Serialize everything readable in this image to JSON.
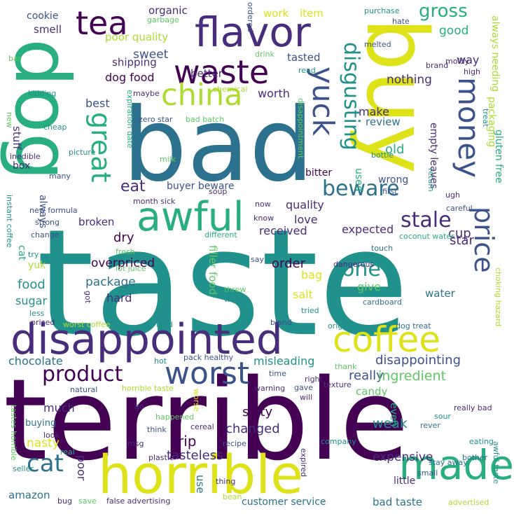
{
  "palette": {
    "purple": "#440154",
    "indigo": "#472d7b",
    "blue": "#3b528b",
    "steel": "#2c728e",
    "teal": "#21918c",
    "green": "#28ae80",
    "lime": "#5ec962",
    "yellowgreen": "#addc30",
    "yellow": "#dde318"
  },
  "words": [
    {
      "id": "taste",
      "text": "taste",
      "c": "teal",
      "rot": 0
    },
    {
      "id": "terrible",
      "text": "terrible",
      "c": "purple",
      "rot": 0
    },
    {
      "id": "bad",
      "text": "bad",
      "c": "steel",
      "rot": 0
    },
    {
      "id": "buy",
      "text": "buy",
      "c": "yellow",
      "rot": 90
    },
    {
      "id": "dog",
      "text": "dog",
      "c": "green",
      "rot": 90
    },
    {
      "id": "disappointed",
      "text": "disappointed",
      "c": "indigo",
      "rot": 0
    },
    {
      "id": "horrible",
      "text": "horrible",
      "c": "yellow",
      "rot": 0
    },
    {
      "id": "flavor",
      "text": "flavor",
      "c": "indigo",
      "rot": 0
    },
    {
      "id": "awful",
      "text": "awful",
      "c": "green",
      "rot": 0
    },
    {
      "id": "made",
      "text": "made",
      "c": "green",
      "rot": 0
    },
    {
      "id": "coffee",
      "text": "coffee",
      "c": "yellow",
      "rot": 0
    },
    {
      "id": "waste",
      "text": "waste",
      "c": "purple",
      "rot": 0
    },
    {
      "id": "worst",
      "text": "worst",
      "c": "blue",
      "rot": 0
    },
    {
      "id": "tea",
      "text": "tea",
      "c": "purple",
      "rot": 0
    },
    {
      "id": "china",
      "text": "china",
      "c": "yellowgreen",
      "rot": 0
    },
    {
      "id": "yuck",
      "text": "yuck",
      "c": "blue",
      "rot": 90
    },
    {
      "id": "money",
      "text": "money",
      "c": "blue",
      "rot": 90
    },
    {
      "id": "price",
      "text": "price",
      "c": "blue",
      "rot": 90
    },
    {
      "id": "great",
      "text": "great",
      "c": "green",
      "rot": 90
    },
    {
      "id": "product",
      "text": "product",
      "c": "purple",
      "rot": 0
    },
    {
      "id": "disgusting",
      "text": "disgusting",
      "c": "teal",
      "rot": 90
    },
    {
      "id": "beware",
      "text": "beware",
      "c": "steel",
      "rot": 0
    },
    {
      "id": "stale",
      "text": "stale",
      "c": "indigo",
      "rot": 0
    },
    {
      "id": "cat",
      "text": "cat",
      "c": "steel",
      "rot": 0
    },
    {
      "id": "one",
      "text": "one",
      "c": "teal",
      "rot": 0
    },
    {
      "id": "gross",
      "text": "gross",
      "c": "green",
      "rot": 0
    },
    {
      "id": "eat",
      "text": "eat",
      "c": "indigo",
      "rot": 0
    },
    {
      "id": "disappointing",
      "text": "disappointing",
      "c": "blue",
      "rot": 0
    },
    {
      "id": "really",
      "text": "really",
      "c": "blue",
      "rot": 0
    },
    {
      "id": "ingredient",
      "text": "ingredient",
      "c": "lime",
      "rot": 0
    },
    {
      "id": "expensive",
      "text": "expensive",
      "c": "indigo",
      "rot": 0
    },
    {
      "id": "tasteless",
      "text": "tasteless",
      "c": "indigo",
      "rot": 0
    },
    {
      "id": "nasty",
      "text": "nasty",
      "c": "yellow",
      "rot": 0
    },
    {
      "id": "salty",
      "text": "salty",
      "c": "purple",
      "rot": 0
    },
    {
      "id": "changed",
      "text": "changed",
      "c": "indigo",
      "rot": 0
    },
    {
      "id": "weak",
      "text": "weak",
      "c": "teal",
      "rot": 0
    },
    {
      "id": "rip",
      "text": "rip",
      "c": "purple",
      "rot": 0
    },
    {
      "id": "much",
      "text": "much",
      "c": "indigo",
      "rot": 0
    },
    {
      "id": "chocolate",
      "text": "chocolate",
      "c": "steel",
      "rot": 0
    },
    {
      "id": "misleading",
      "text": "misleading",
      "c": "teal",
      "rot": 0
    },
    {
      "id": "candy",
      "text": "candy",
      "c": "lime",
      "rot": 0
    },
    {
      "id": "order",
      "text": "order",
      "c": "purple",
      "rot": 0
    },
    {
      "id": "package",
      "text": "package",
      "c": "steel",
      "rot": 0
    },
    {
      "id": "overpriced",
      "text": "overpriced",
      "c": "purple",
      "rot": 0
    },
    {
      "id": "food",
      "text": "food",
      "c": "teal",
      "rot": 0
    },
    {
      "id": "sugar",
      "text": "sugar",
      "c": "teal",
      "rot": 0
    },
    {
      "id": "hard",
      "text": "hard",
      "c": "indigo",
      "rot": 0
    },
    {
      "id": "dry",
      "text": "dry",
      "c": "purple",
      "rot": 0
    },
    {
      "id": "broken",
      "text": "broken",
      "c": "indigo",
      "rot": 0
    },
    {
      "id": "quality",
      "text": "quality",
      "c": "indigo",
      "rot": 0
    },
    {
      "id": "received",
      "text": "received",
      "c": "indigo",
      "rot": 0
    },
    {
      "id": "love",
      "text": "love",
      "c": "indigo",
      "rot": 0
    },
    {
      "id": "expected",
      "text": "expected",
      "c": "indigo",
      "rot": 0
    },
    {
      "id": "cup",
      "text": "cup",
      "c": "indigo",
      "rot": 0
    },
    {
      "id": "star",
      "text": "star",
      "c": "indigo",
      "rot": 0
    },
    {
      "id": "water",
      "text": "water",
      "c": "steel",
      "rot": 0
    },
    {
      "id": "give",
      "text": "give",
      "c": "lime",
      "rot": 0
    },
    {
      "id": "salt",
      "text": "salt",
      "c": "yellow",
      "rot": 0
    },
    {
      "id": "bag",
      "text": "bag",
      "c": "yellow",
      "rot": 0
    },
    {
      "id": "yuk",
      "text": "yuk",
      "c": "yellowgreen",
      "rot": 0
    },
    {
      "id": "sweet",
      "text": "sweet",
      "c": "blue",
      "rot": 0
    },
    {
      "id": "shipping",
      "text": "shipping",
      "c": "indigo",
      "rot": 0
    },
    {
      "id": "dog-food",
      "text": "dog food",
      "c": "purple",
      "rot": 0
    },
    {
      "id": "worth",
      "text": "worth",
      "c": "indigo",
      "rot": 0
    },
    {
      "id": "best",
      "text": "best",
      "c": "blue",
      "rot": 0
    },
    {
      "id": "make",
      "text": "make",
      "c": "indigo",
      "rot": 0
    },
    {
      "id": "review",
      "text": "review",
      "c": "steel",
      "rot": 0
    },
    {
      "id": "old",
      "text": "old",
      "c": "green",
      "rot": 0
    },
    {
      "id": "nothing",
      "text": "nothing",
      "c": "indigo",
      "rot": 0
    },
    {
      "id": "better",
      "text": "better",
      "c": "indigo",
      "rot": 0
    },
    {
      "id": "tasted",
      "text": "tasted",
      "c": "blue",
      "rot": 0
    },
    {
      "id": "poor-quality",
      "text": "poor quality",
      "c": "yellowgreen",
      "rot": 0
    },
    {
      "id": "organic",
      "text": "organic",
      "c": "indigo",
      "rot": 0
    },
    {
      "id": "smell",
      "text": "smell",
      "c": "indigo",
      "rot": 0
    },
    {
      "id": "cookie",
      "text": "cookie",
      "c": "blue",
      "rot": 0
    },
    {
      "id": "work",
      "text": "work",
      "c": "yellow",
      "rot": 0
    },
    {
      "id": "item",
      "text": "item",
      "c": "yellow",
      "rot": 0
    },
    {
      "id": "way",
      "text": "way",
      "c": "indigo",
      "rot": 0
    },
    {
      "id": "good",
      "text": "good",
      "c": "green",
      "rot": 0
    },
    {
      "id": "buyer-beware",
      "text": "buyer beware",
      "c": "blue",
      "rot": 0
    },
    {
      "id": "bitter",
      "text": "bitter",
      "c": "purple",
      "rot": 0
    },
    {
      "id": "wrong",
      "text": "wrong",
      "c": "blue",
      "rot": 0
    },
    {
      "id": "buying",
      "text": "buying",
      "c": "steel",
      "rot": 0
    },
    {
      "id": "poor",
      "text": "poor",
      "c": "indigo",
      "rot": 90
    },
    {
      "id": "amazon",
      "text": "amazon",
      "c": "steel",
      "rot": 0
    },
    {
      "id": "use",
      "text": "use",
      "c": "steel",
      "rot": 90
    },
    {
      "id": "customer-service",
      "text": "customer service",
      "c": "steel",
      "rot": 0
    },
    {
      "id": "bad-taste",
      "text": "bad taste",
      "c": "steel",
      "rot": 0
    },
    {
      "id": "little",
      "text": "little",
      "c": "indigo",
      "rot": 0
    },
    {
      "id": "stuff",
      "text": "stuff",
      "c": "indigo",
      "rot": 90
    },
    {
      "id": "box",
      "text": "box",
      "c": "indigo",
      "rot": 0
    },
    {
      "id": "filler-food",
      "text": "filler food",
      "c": "lime",
      "rot": 90
    },
    {
      "id": "gluten-free",
      "text": "gluten free",
      "c": "green",
      "rot": 90
    },
    {
      "id": "always-needing",
      "text": "always needing",
      "c": "yellowgreen",
      "rot": 90
    },
    {
      "id": "packaging",
      "text": "packaging",
      "c": "yellowgreen",
      "rot": 90
    },
    {
      "id": "empty-leaves",
      "text": "empty leaves",
      "c": "indigo",
      "rot": 90
    },
    {
      "id": "used",
      "text": "used",
      "c": "green",
      "rot": 90
    },
    {
      "id": "even",
      "text": "even",
      "c": "green",
      "rot": 90
    },
    {
      "id": "always",
      "text": "always",
      "c": "blue",
      "rot": 90
    },
    {
      "id": "cat-s",
      "text": "cat",
      "c": "green",
      "rot": 90
    },
    {
      "id": "bar",
      "text": "bar",
      "c": "lime",
      "rot": 0
    },
    {
      "id": "zero-star",
      "text": "zero star",
      "c": "blue",
      "rot": 0
    },
    {
      "id": "bad-batch",
      "text": "bad batch",
      "c": "lime",
      "rot": 0
    },
    {
      "id": "chemical",
      "text": "chemical",
      "c": "yellowgreen",
      "rot": 0
    },
    {
      "id": "month-sick",
      "text": "month sick",
      "c": "indigo",
      "rot": 0
    },
    {
      "id": "soup",
      "text": "soup",
      "c": "indigo",
      "rot": 0
    },
    {
      "id": "garbage",
      "text": "garbage",
      "c": "lime",
      "rot": 0
    },
    {
      "id": "maybe",
      "text": "maybe",
      "c": "indigo",
      "rot": 0
    },
    {
      "id": "kidding",
      "text": "kidding",
      "c": "teal",
      "rot": 0
    },
    {
      "id": "cheap",
      "text": "cheap",
      "c": "teal",
      "rot": 0
    },
    {
      "id": "inedible",
      "text": "inedible",
      "c": "indigo",
      "rot": 0
    },
    {
      "id": "picture",
      "text": "picture",
      "c": "teal",
      "rot": 0
    },
    {
      "id": "milk",
      "text": "milk",
      "c": "lime",
      "rot": 0
    },
    {
      "id": "many",
      "text": "many",
      "c": "blue",
      "rot": 0
    },
    {
      "id": "new-formula",
      "text": "new formula",
      "c": "blue",
      "rot": 0
    },
    {
      "id": "strong",
      "text": "strong",
      "c": "blue",
      "rot": 0
    },
    {
      "id": "change",
      "text": "change",
      "c": "blue",
      "rot": 0
    },
    {
      "id": "try",
      "text": "try",
      "c": "teal",
      "rot": 0
    },
    {
      "id": "fresh",
      "text": "fresh",
      "c": "lime",
      "rot": 0
    },
    {
      "id": "lot-juice",
      "text": "lot juice",
      "c": "lime",
      "rot": 0
    },
    {
      "id": "less",
      "text": "less",
      "c": "teal",
      "rot": 0
    },
    {
      "id": "priced",
      "text": "priced",
      "c": "indigo",
      "rot": 0
    },
    {
      "id": "worst-coffee",
      "text": "worst coffee",
      "c": "yellowgreen",
      "rot": 0
    },
    {
      "id": "cat-food",
      "text": "cat food",
      "c": "teal",
      "rot": 0
    },
    {
      "id": "pack-healthy",
      "text": "pack healthy",
      "c": "blue",
      "rot": 0
    },
    {
      "id": "hot",
      "text": "hot",
      "c": "teal",
      "rot": 0
    },
    {
      "id": "natural",
      "text": "natural",
      "c": "blue",
      "rot": 0
    },
    {
      "id": "horrible-taste",
      "text": "horrible taste",
      "c": "yellowgreen",
      "rot": 0
    },
    {
      "id": "time",
      "text": "time",
      "c": "blue",
      "rot": 0
    },
    {
      "id": "warning",
      "text": "warning",
      "c": "indigo",
      "rot": 0
    },
    {
      "id": "gave",
      "text": "gave",
      "c": "blue",
      "rot": 0
    },
    {
      "id": "right",
      "text": "right",
      "c": "indigo",
      "rot": 0
    },
    {
      "id": "will",
      "text": "will",
      "c": "indigo",
      "rot": 0
    },
    {
      "id": "texture",
      "text": "texture",
      "c": "indigo",
      "rot": 0
    },
    {
      "id": "thank",
      "text": "thank",
      "c": "lime",
      "rot": 0
    },
    {
      "id": "original",
      "text": "original",
      "c": "teal",
      "rot": 0
    },
    {
      "id": "dog-treat",
      "text": "dog treat",
      "c": "steel",
      "rot": 0
    },
    {
      "id": "tried",
      "text": "tried",
      "c": "teal",
      "rot": 0
    },
    {
      "id": "bland",
      "text": "bland",
      "c": "blue",
      "rot": 0
    },
    {
      "id": "cardboard",
      "text": "cardboard",
      "c": "steel",
      "rot": 0
    },
    {
      "id": "dangerous",
      "text": "dangerous",
      "c": "indigo",
      "rot": 0
    },
    {
      "id": "touch",
      "text": "touch",
      "c": "steel",
      "rot": 0
    },
    {
      "id": "say",
      "text": "say",
      "c": "blue",
      "rot": 0
    },
    {
      "id": "threw",
      "text": "threw",
      "c": "lime",
      "rot": 0
    },
    {
      "id": "want",
      "text": "want",
      "c": "teal",
      "rot": 0
    },
    {
      "id": "different",
      "text": "different",
      "c": "green",
      "rot": 0
    },
    {
      "id": "coconut-water",
      "text": "coconut water",
      "c": "green",
      "rot": 0
    },
    {
      "id": "careful",
      "text": "careful",
      "c": "blue",
      "rot": 0
    },
    {
      "id": "ugh",
      "text": "ugh",
      "c": "indigo",
      "rot": 0
    },
    {
      "id": "first",
      "text": "first",
      "c": "blue",
      "rot": 0
    },
    {
      "id": "know",
      "text": "know",
      "c": "indigo",
      "rot": 0
    },
    {
      "id": "now",
      "text": "now",
      "c": "indigo",
      "rot": 0
    },
    {
      "id": "bottle",
      "text": "bottle",
      "c": "teal",
      "rot": 0
    },
    {
      "id": "brand",
      "text": "brand",
      "c": "indigo",
      "rot": 0
    },
    {
      "id": "moldy",
      "text": "moldy",
      "c": "indigo",
      "rot": 0
    },
    {
      "id": "high",
      "text": "high",
      "c": "indigo",
      "rot": 0
    },
    {
      "id": "read",
      "text": "read",
      "c": "teal",
      "rot": 0
    },
    {
      "id": "melted",
      "text": "melted",
      "c": "blue",
      "rot": 0
    },
    {
      "id": "hate",
      "text": "hate",
      "c": "blue",
      "rot": 0
    },
    {
      "id": "purchase",
      "text": "purchase",
      "c": "teal",
      "rot": 0
    },
    {
      "id": "drink",
      "text": "drink",
      "c": "lime",
      "rot": 0
    },
    {
      "id": "ordered",
      "text": "ordered",
      "c": "blue",
      "rot": 90
    },
    {
      "id": "sour",
      "text": "sour",
      "c": "teal",
      "rot": 0
    },
    {
      "id": "really-bad",
      "text": "really bad",
      "c": "indigo",
      "rot": 0
    },
    {
      "id": "eating",
      "text": "eating",
      "c": "teal",
      "rot": 0
    },
    {
      "id": "rever",
      "text": "rever",
      "c": "steel",
      "rot": 0
    },
    {
      "id": "stay-away",
      "text": "stay away",
      "c": "steel",
      "rot": 0
    },
    {
      "id": "bother",
      "text": "bother",
      "c": "steel",
      "rot": 0
    },
    {
      "id": "small",
      "text": "small",
      "c": "blue",
      "rot": 0
    },
    {
      "id": "advertised",
      "text": "advertised",
      "c": "yellowgreen",
      "rot": 0
    },
    {
      "id": "company",
      "text": "company",
      "c": "teal",
      "rot": 0
    },
    {
      "id": "false-advertising",
      "text": "false advertising",
      "c": "indigo",
      "rot": 0
    },
    {
      "id": "thing",
      "text": "thing",
      "c": "indigo",
      "rot": 0
    },
    {
      "id": "plastic",
      "text": "plastic",
      "c": "indigo",
      "rot": 0
    },
    {
      "id": "msg",
      "text": "msg",
      "c": "indigo",
      "rot": 0
    },
    {
      "id": "cereal",
      "text": "cereal",
      "c": "indigo",
      "rot": 0
    },
    {
      "id": "think",
      "text": "think",
      "c": "blue",
      "rot": 0
    },
    {
      "id": "happened",
      "text": "happened",
      "c": "lime",
      "rot": 0
    },
    {
      "id": "recipe",
      "text": "recipe",
      "c": "blue",
      "rot": 0
    },
    {
      "id": "look",
      "text": "look",
      "c": "indigo",
      "rot": 0
    },
    {
      "id": "real",
      "text": "real",
      "c": "green",
      "rot": 0
    },
    {
      "id": "save",
      "text": "save",
      "c": "lime",
      "rot": 0
    },
    {
      "id": "bean",
      "text": "bean",
      "c": "yellowgreen",
      "rot": 0
    },
    {
      "id": "bug",
      "text": "bug",
      "c": "indigo",
      "rot": 0
    },
    {
      "id": "seller",
      "text": "seller",
      "c": "teal",
      "rot": 0
    },
    {
      "id": "go",
      "text": "go",
      "c": "indigo",
      "rot": 0
    },
    {
      "id": "new",
      "text": "new",
      "c": "lime",
      "rot": 90
    },
    {
      "id": "instant-coffee",
      "text": "instant coffee",
      "c": "teal",
      "rot": 90
    },
    {
      "id": "tastes-horrible",
      "text": "tastes horrible",
      "c": "lime",
      "rot": 90
    },
    {
      "id": "expiration-date",
      "text": "expiration date",
      "c": "green",
      "rot": 90
    },
    {
      "id": "disappointment",
      "text": "disappointment",
      "c": "lime",
      "rot": 90
    },
    {
      "id": "return",
      "text": "return",
      "c": "teal",
      "rot": 90
    },
    {
      "id": "treat",
      "text": "treat",
      "c": "teal",
      "rot": 90
    },
    {
      "id": "choking-hazard",
      "text": "choking hazard",
      "c": "yellowgreen",
      "rot": 90
    },
    {
      "id": "awful-taste",
      "text": "awful taste",
      "c": "teal",
      "rot": 90
    },
    {
      "id": "worse",
      "text": "worse",
      "c": "yellow",
      "rot": 90
    },
    {
      "id": "expired",
      "text": "expired",
      "c": "indigo",
      "rot": 90
    },
    {
      "id": "got",
      "text": "got",
      "c": "indigo",
      "rot": 90
    }
  ]
}
